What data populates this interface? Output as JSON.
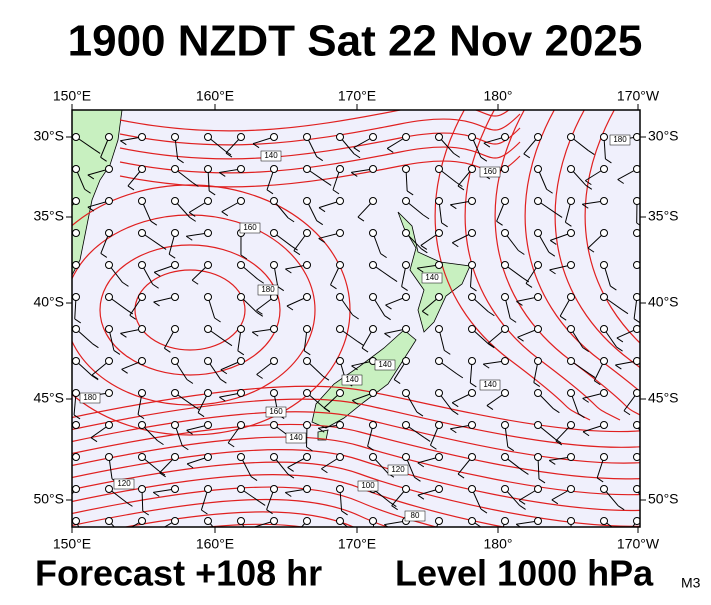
{
  "header": {
    "title": "1900 NZDT Sat 22 Nov 2025"
  },
  "map": {
    "top_labels": [
      "150°E",
      "160°E",
      "170°E",
      "180°",
      "170°W"
    ],
    "bottom_labels": [
      "150°E",
      "160°E",
      "170°E",
      "180°",
      "170°W"
    ],
    "left_labels": [
      "30°S",
      "35°S",
      "40°S",
      "45°S",
      "50°S"
    ],
    "right_labels": [
      "30°S",
      "35°S",
      "40°S",
      "45°S",
      "50°S"
    ],
    "contour_labels": [
      "140",
      "160",
      "180",
      "140",
      "140",
      "180",
      "160",
      "140",
      "120",
      "100",
      "80",
      "120",
      "140",
      "160",
      "180",
      "140"
    ]
  },
  "footer": {
    "forecast": "Forecast +108 hr",
    "level": "Level 1000 hPa",
    "model": "M3"
  }
}
